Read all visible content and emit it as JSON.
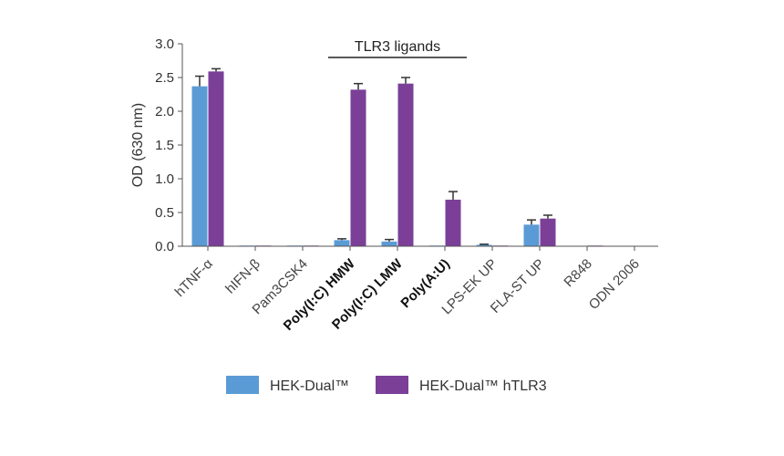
{
  "chart_data": {
    "type": "bar",
    "title": "",
    "xlabel": "",
    "ylabel": "OD (630 nm)",
    "ylim": [
      0,
      3.0
    ],
    "yticks": [
      "0.0",
      "0.5",
      "1.0",
      "1.5",
      "2.0",
      "2.5",
      "3.0"
    ],
    "grid": false,
    "legend_position": "bottom",
    "categories": [
      "hTNF-α",
      "hIFN-β",
      "Pam3CSK4",
      "Poly(I:C) HMW",
      "Poly(I:C) LMW",
      "Poly(A:U)",
      "LPS-EK UP",
      "FLA-ST UP",
      "R848",
      "ODN 2006"
    ],
    "bold_categories": [
      "Poly(I:C) HMW",
      "Poly(I:C) LMW",
      "Poly(A:U)"
    ],
    "series": [
      {
        "name": "HEK-Dual™",
        "color": "#5b9bd5",
        "values": [
          2.37,
          0.01,
          0.01,
          0.09,
          0.07,
          0.01,
          0.02,
          0.32,
          0.0,
          0.0
        ],
        "errors": [
          0.15,
          0.0,
          0.0,
          0.02,
          0.03,
          0.0,
          0.01,
          0.07,
          0.0,
          0.0
        ]
      },
      {
        "name": "HEK-Dual™ hTLR3",
        "color": "#7b3f98",
        "values": [
          2.59,
          0.01,
          0.01,
          2.32,
          2.41,
          0.69,
          0.01,
          0.41,
          0.01,
          0.0
        ],
        "errors": [
          0.04,
          0.0,
          0.0,
          0.09,
          0.09,
          0.12,
          0.0,
          0.05,
          0.0,
          0.0
        ]
      }
    ],
    "annotations": [
      {
        "label": "TLR3 ligands",
        "spans": [
          "Poly(I:C) HMW",
          "Poly(A:U)"
        ]
      }
    ]
  }
}
